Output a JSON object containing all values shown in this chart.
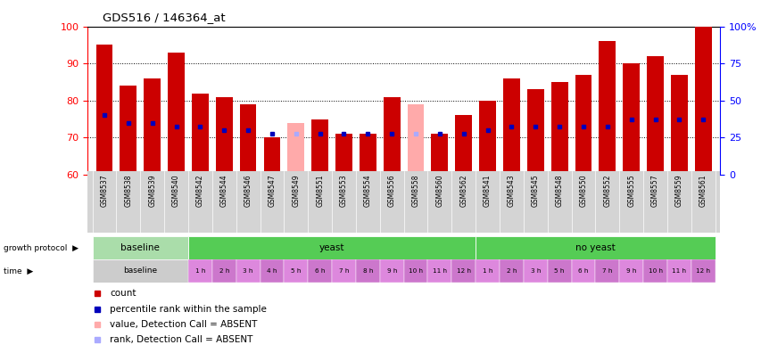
{
  "title": "GDS516 / 146364_at",
  "samples": [
    "GSM8537",
    "GSM8538",
    "GSM8539",
    "GSM8540",
    "GSM8542",
    "GSM8544",
    "GSM8546",
    "GSM8547",
    "GSM8549",
    "GSM8551",
    "GSM8553",
    "GSM8554",
    "GSM8556",
    "GSM8558",
    "GSM8560",
    "GSM8562",
    "GSM8541",
    "GSM8543",
    "GSM8545",
    "GSM8548",
    "GSM8550",
    "GSM8552",
    "GSM8555",
    "GSM8557",
    "GSM8559",
    "GSM8561"
  ],
  "bar_heights": [
    95,
    84,
    86,
    93,
    82,
    81,
    79,
    70,
    74,
    75,
    71,
    71,
    81,
    79,
    71,
    76,
    80,
    86,
    83,
    85,
    87,
    96,
    90,
    92,
    87,
    100
  ],
  "blue_pos": [
    76,
    74,
    74,
    73,
    73,
    72,
    72,
    71,
    71,
    71,
    71,
    71,
    71,
    71,
    71,
    71,
    72,
    73,
    73,
    73,
    73,
    73,
    75,
    75,
    75,
    75
  ],
  "absent": [
    false,
    false,
    false,
    false,
    false,
    false,
    false,
    false,
    true,
    false,
    false,
    false,
    false,
    true,
    false,
    false,
    false,
    false,
    false,
    false,
    false,
    false,
    false,
    false,
    false,
    false
  ],
  "ymin": 60,
  "ymax": 100,
  "bar_color": "#cc0000",
  "absent_bar_color": "#ffaaaa",
  "blue_color": "#0000bb",
  "absent_blue_color": "#aaaaff",
  "gp_groups": [
    {
      "label": "baseline",
      "start": 0,
      "end": 4,
      "color": "#aaddaa"
    },
    {
      "label": "yeast",
      "start": 4,
      "end": 16,
      "color": "#55cc55"
    },
    {
      "label": "no yeast",
      "start": 16,
      "end": 26,
      "color": "#55cc55"
    }
  ],
  "time_baseline_color": "#cccccc",
  "time_yeast_color": "#dd88dd",
  "time_yeast_labels": [
    "1 h",
    "2 h",
    "3 h",
    "4 h",
    "5 h",
    "6 h",
    "7 h",
    "8 h",
    "9 h",
    "10 h",
    "11 h",
    "12 h"
  ],
  "time_noyeast_labels": [
    "1 h",
    "2 h",
    "3 h",
    "5 h",
    "6 h",
    "7 h",
    "9 h",
    "10 h",
    "11 h",
    "12 h"
  ],
  "legend_items": [
    {
      "color": "#cc0000",
      "label": "count"
    },
    {
      "color": "#0000bb",
      "label": "percentile rank within the sample"
    },
    {
      "color": "#ffaaaa",
      "label": "value, Detection Call = ABSENT"
    },
    {
      "color": "#aaaaff",
      "label": "rank, Detection Call = ABSENT"
    }
  ]
}
